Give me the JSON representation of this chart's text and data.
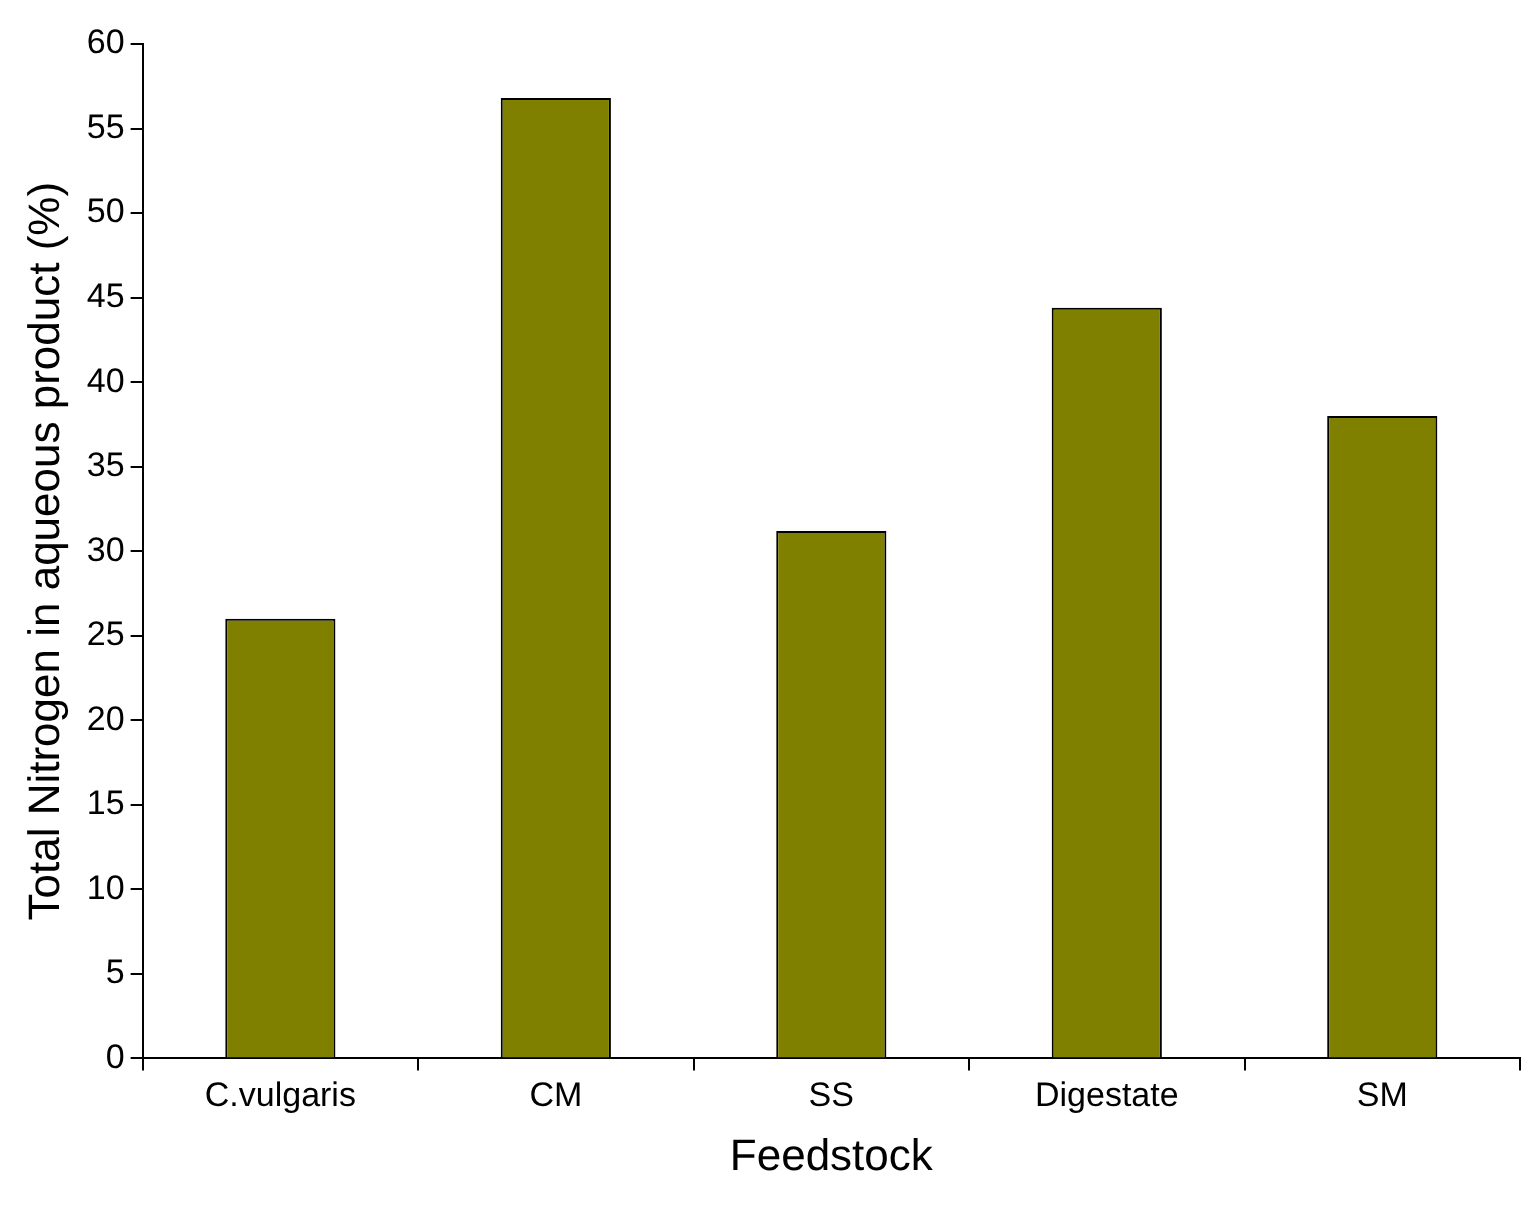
{
  "chart_data": {
    "type": "bar",
    "xlabel": "Feedstock",
    "ylabel": "Total Nitrogen in aqueous product (%)",
    "categories": [
      "C.vulgaris",
      "CM",
      "SS",
      "Digestate",
      "SM"
    ],
    "values": [
      26,
      56.8,
      31.2,
      44.4,
      38
    ],
    "color": "#808000",
    "ylim": [
      0,
      60
    ],
    "yticks": [
      0,
      5,
      10,
      15,
      20,
      25,
      30,
      35,
      40,
      45,
      50,
      55,
      60
    ],
    "grid": false,
    "legend": false
  }
}
